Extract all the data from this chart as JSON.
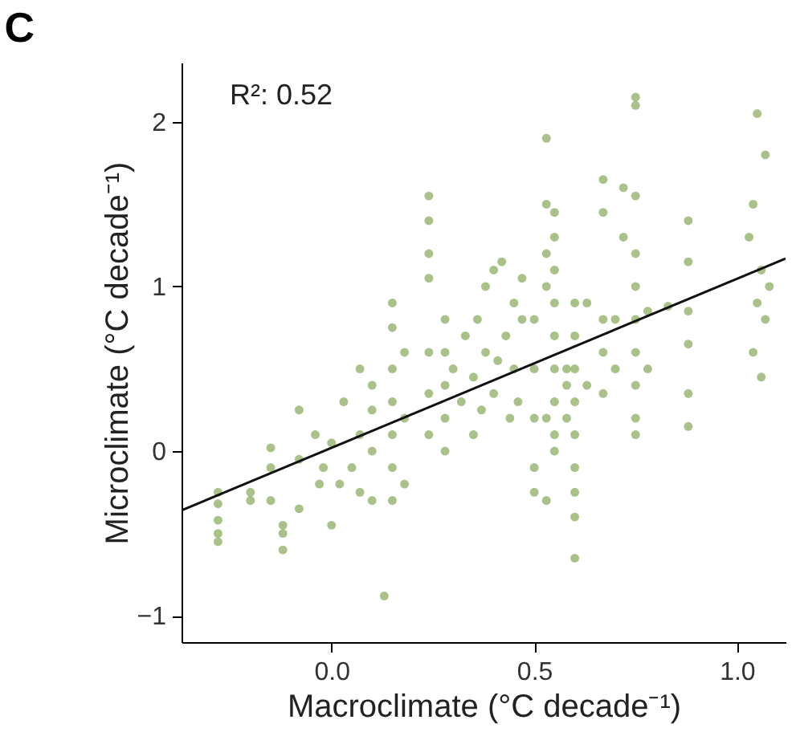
{
  "chart_data": {
    "type": "scatter",
    "title": "C",
    "xlabel": "Macroclimate (°C decade⁻¹)",
    "ylabel": "Microclimate (°C decade⁻¹)",
    "annotations": [
      "R²: 0.52"
    ],
    "xlim": [
      -0.37,
      1.12
    ],
    "ylim": [
      -1.16,
      2.36
    ],
    "xticks": [
      {
        "value": 0,
        "label": "0.0"
      },
      0.5,
      {
        "value": 1,
        "label": "1.0"
      }
    ],
    "yticks": [
      -1,
      0,
      1,
      2
    ],
    "series": [
      {
        "color": "#6f9a3a",
        "marker": "circle",
        "x": [
          -0.28,
          -0.28,
          -0.28,
          -0.28,
          -0.28,
          -0.2,
          -0.2,
          -0.15,
          -0.15,
          -0.15,
          -0.12,
          -0.12,
          -0.12,
          -0.08,
          -0.08,
          -0.08,
          -0.04,
          -0.02,
          0.0,
          0.02,
          0.03,
          0.0,
          0.05,
          -0.03,
          0.07,
          0.07,
          0.07,
          0.1,
          0.1,
          0.1,
          0.1,
          0.15,
          0.15,
          0.15,
          0.15,
          0.15,
          0.15,
          0.15,
          0.18,
          0.18,
          0.18,
          0.13,
          0.24,
          0.24,
          0.24,
          0.24,
          0.24,
          0.24,
          0.24,
          0.28,
          0.28,
          0.28,
          0.28,
          0.28,
          0.3,
          0.32,
          0.33,
          0.35,
          0.35,
          0.36,
          0.37,
          0.38,
          0.38,
          0.4,
          0.4,
          0.41,
          0.42,
          0.43,
          0.44,
          0.45,
          0.45,
          0.46,
          0.47,
          0.47,
          0.5,
          0.5,
          0.5,
          0.5,
          0.5,
          0.53,
          0.53,
          0.53,
          0.53,
          0.53,
          0.53,
          0.55,
          0.55,
          0.55,
          0.55,
          0.55,
          0.55,
          0.55,
          0.55,
          0.55,
          0.58,
          0.58,
          0.58,
          0.6,
          0.6,
          0.6,
          0.6,
          0.6,
          0.6,
          0.6,
          0.6,
          0.6,
          0.63,
          0.63,
          0.67,
          0.67,
          0.67,
          0.67,
          0.67,
          0.7,
          0.7,
          0.72,
          0.72,
          0.75,
          0.75,
          0.75,
          0.75,
          0.75,
          0.75,
          0.75,
          0.75,
          0.75,
          0.75,
          0.78,
          0.78,
          0.83,
          0.88,
          0.88,
          0.88,
          0.88,
          0.88,
          0.88,
          1.05,
          1.07,
          1.04,
          1.03,
          1.06,
          1.08,
          1.05,
          1.07,
          1.04,
          1.06
        ],
        "values": [
          -0.25,
          -0.32,
          -0.42,
          -0.5,
          -0.55,
          -0.3,
          -0.25,
          -0.1,
          0.02,
          -0.3,
          -0.45,
          -0.6,
          -0.5,
          0.25,
          -0.05,
          -0.35,
          0.1,
          -0.1,
          0.05,
          -0.2,
          0.3,
          -0.45,
          -0.1,
          -0.2,
          0.5,
          0.1,
          -0.25,
          0.25,
          0.0,
          -0.3,
          0.4,
          0.9,
          0.75,
          0.5,
          0.3,
          0.1,
          -0.1,
          -0.3,
          0.6,
          0.2,
          -0.2,
          -0.88,
          1.55,
          1.4,
          1.2,
          1.05,
          0.6,
          0.35,
          0.1,
          0.8,
          0.6,
          0.4,
          0.2,
          0.0,
          0.5,
          0.3,
          0.7,
          0.1,
          0.45,
          0.8,
          0.25,
          1.0,
          0.6,
          1.1,
          0.35,
          0.55,
          1.15,
          0.7,
          0.2,
          0.5,
          0.9,
          0.3,
          1.05,
          0.8,
          0.8,
          0.5,
          0.2,
          -0.1,
          -0.25,
          1.9,
          1.5,
          1.2,
          1.0,
          0.2,
          -0.3,
          1.45,
          1.3,
          1.1,
          0.9,
          0.7,
          0.5,
          0.3,
          0.1,
          0.0,
          0.4,
          0.2,
          0.5,
          0.9,
          0.7,
          0.5,
          0.3,
          0.1,
          -0.1,
          -0.25,
          -0.4,
          -0.65,
          0.9,
          0.4,
          1.65,
          1.45,
          0.8,
          0.6,
          0.35,
          0.5,
          0.8,
          1.6,
          1.3,
          2.15,
          2.1,
          1.55,
          1.2,
          1.0,
          0.8,
          0.6,
          0.4,
          0.2,
          0.1,
          0.5,
          0.85,
          0.88,
          1.4,
          1.15,
          0.85,
          0.65,
          0.35,
          0.15,
          2.05,
          1.8,
          1.5,
          1.3,
          1.1,
          1.0,
          0.9,
          0.8,
          0.6,
          0.45
        ]
      },
      {
        "type": "line",
        "color": "#111111",
        "x": [
          -0.37,
          1.12
        ],
        "values": [
          -0.36,
          1.17
        ]
      }
    ]
  }
}
